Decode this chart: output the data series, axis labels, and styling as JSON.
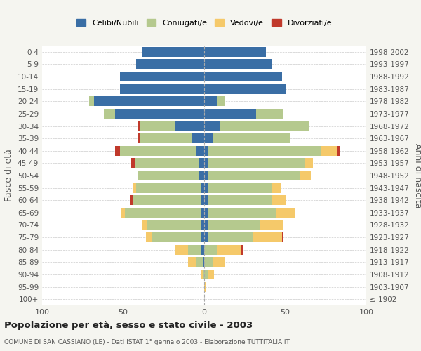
{
  "age_groups": [
    "100+",
    "95-99",
    "90-94",
    "85-89",
    "80-84",
    "75-79",
    "70-74",
    "65-69",
    "60-64",
    "55-59",
    "50-54",
    "45-49",
    "40-44",
    "35-39",
    "30-34",
    "25-29",
    "20-24",
    "15-19",
    "10-14",
    "5-9",
    "0-4"
  ],
  "birth_years": [
    "≤ 1902",
    "1903-1907",
    "1908-1912",
    "1913-1917",
    "1918-1922",
    "1923-1927",
    "1928-1932",
    "1933-1937",
    "1938-1942",
    "1943-1947",
    "1948-1952",
    "1953-1957",
    "1958-1962",
    "1963-1967",
    "1968-1972",
    "1973-1977",
    "1978-1982",
    "1983-1987",
    "1988-1992",
    "1993-1997",
    "1998-2002"
  ],
  "male": {
    "celibi": [
      0,
      0,
      0,
      1,
      2,
      2,
      2,
      2,
      2,
      2,
      3,
      3,
      5,
      8,
      18,
      55,
      68,
      52,
      52,
      42,
      38
    ],
    "coniugati": [
      0,
      0,
      1,
      4,
      8,
      30,
      33,
      47,
      42,
      40,
      38,
      40,
      47,
      32,
      22,
      7,
      3,
      0,
      0,
      0,
      0
    ],
    "vedovi": [
      0,
      0,
      1,
      5,
      8,
      4,
      3,
      2,
      0,
      2,
      0,
      0,
      0,
      0,
      0,
      0,
      0,
      0,
      0,
      0,
      0
    ],
    "divorziati": [
      0,
      0,
      0,
      0,
      0,
      0,
      0,
      0,
      2,
      0,
      0,
      2,
      3,
      1,
      1,
      0,
      0,
      0,
      0,
      0,
      0
    ]
  },
  "female": {
    "nubili": [
      0,
      0,
      0,
      0,
      0,
      2,
      2,
      2,
      2,
      2,
      2,
      2,
      2,
      5,
      10,
      32,
      8,
      50,
      48,
      42,
      38
    ],
    "coniugate": [
      0,
      0,
      2,
      5,
      8,
      28,
      32,
      42,
      40,
      40,
      57,
      60,
      70,
      48,
      55,
      17,
      5,
      0,
      0,
      0,
      0
    ],
    "vedove": [
      0,
      1,
      4,
      8,
      15,
      18,
      15,
      12,
      8,
      5,
      7,
      5,
      10,
      0,
      0,
      0,
      0,
      0,
      0,
      0,
      0
    ],
    "divorziate": [
      0,
      0,
      0,
      0,
      1,
      1,
      0,
      0,
      0,
      0,
      0,
      0,
      2,
      0,
      0,
      0,
      0,
      0,
      0,
      0,
      0
    ]
  },
  "colors": {
    "celibi": "#3a6ea5",
    "coniugati": "#b5c98e",
    "vedovi": "#f5c96a",
    "divorziati": "#c0392b"
  },
  "xlim": 100,
  "title": "Popolazione per età, sesso e stato civile - 2003",
  "subtitle": "COMUNE DI SAN CASSIANO (LE) - Dati ISTAT 1° gennaio 2003 - Elaborazione TUTTITALIA.IT",
  "ylabel_left": "Fasce di età",
  "ylabel_right": "Anni di nascita",
  "bg_color": "#f5f5f0",
  "plot_bg": "#ffffff"
}
